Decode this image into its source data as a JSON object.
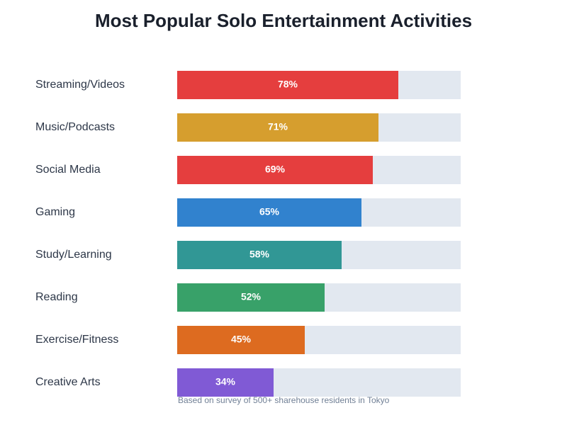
{
  "chart_data": {
    "type": "hbar",
    "title": "Most Popular Solo Entertainment Activities",
    "categories": [
      "Streaming/Videos",
      "Music/Podcasts",
      "Social Media",
      "Gaming",
      "Study/Learning",
      "Reading",
      "Exercise/Fitness",
      "Creative Arts"
    ],
    "values": [
      78,
      71,
      69,
      65,
      58,
      52,
      45,
      34
    ],
    "value_labels": [
      "78%",
      "71%",
      "69%",
      "65%",
      "58%",
      "52%",
      "45%",
      "34%"
    ],
    "colors": [
      "#e53e3e",
      "#d69e2e",
      "#e53e3e",
      "#3182ce",
      "#319795",
      "#38a169",
      "#dd6b20",
      "#805ad5"
    ],
    "xlim": [
      0,
      100
    ],
    "note": "Based on survey of 500+ sharehouse residents in Tokyo"
  }
}
